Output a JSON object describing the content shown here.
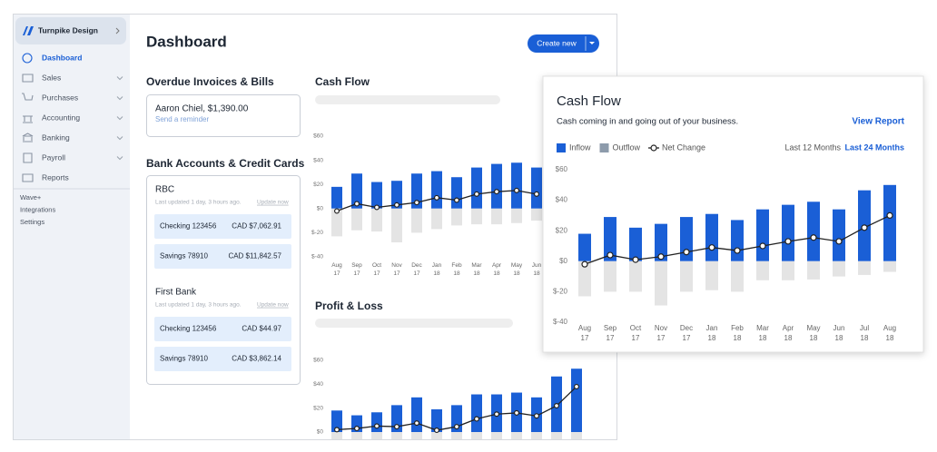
{
  "sidebar": {
    "company": "Turnpike Design",
    "nav": [
      "Dashboard",
      "Sales",
      "Purchases",
      "Accounting",
      "Banking",
      "Payroll",
      "Reports"
    ],
    "links": [
      "Wave+",
      "Integrations",
      "Settings"
    ]
  },
  "header": {
    "title": "Dashboard",
    "button": "Create new"
  },
  "overdue": {
    "title": "Overdue Invoices & Bills",
    "item": "Aaron Chiel, $1,390.00",
    "action": "Send a reminder"
  },
  "bank_accounts": {
    "title": "Bank Accounts & Credit Cards",
    "banks": [
      {
        "name": "RBC",
        "updated": "Last updated 1 day, 3 hours ago.",
        "action": "Update now",
        "accounts": [
          {
            "name": "Checking 123456",
            "balance": "CAD $7,062.91"
          },
          {
            "name": "Savings 78910",
            "balance": "CAD $11,842.57"
          }
        ]
      },
      {
        "name": "First Bank",
        "updated": "Last updated 1 day, 3 hours ago.",
        "action": "Update now",
        "accounts": [
          {
            "name": "Checking 123456",
            "balance": "CAD $44.97"
          },
          {
            "name": "Savings 78910",
            "balance": "CAD $3,862.14"
          }
        ]
      }
    ]
  },
  "popup": {
    "link": "View Report",
    "ranges": [
      "Last 12 Months",
      "Last 24 Months"
    ]
  },
  "chart_data": [
    {
      "type": "bar",
      "title": "Cash Flow",
      "categories": [
        "Aug 17",
        "Sep 17",
        "Oct 17",
        "Nov 17",
        "Dec 17",
        "Jan 18",
        "Feb 18",
        "Mar 18",
        "Apr 18",
        "May 18",
        "Jun 18"
      ],
      "series": [
        {
          "color": "#1a5fd6",
          "values": [
            18,
            29,
            22,
            23,
            29,
            31,
            26,
            34,
            37,
            38,
            34
          ]
        },
        {
          "color": "#e4e4e4",
          "values": [
            -23,
            -18,
            -19,
            -28,
            -20,
            -17,
            -14,
            -13,
            -13,
            -12,
            -10
          ]
        },
        {
          "type": "line",
          "color": "#222222",
          "values": [
            -2,
            4,
            1,
            3,
            5,
            9,
            7,
            12,
            14,
            15,
            12
          ]
        }
      ],
      "ylim": [
        -40,
        60
      ],
      "yticks": [
        {
          "value": -40,
          "label": "$-40"
        },
        {
          "value": -20,
          "label": "$-20"
        },
        {
          "value": 0,
          "label": "$0"
        },
        {
          "value": 20,
          "label": "$20"
        },
        {
          "value": 40,
          "label": "$40"
        },
        {
          "value": 60,
          "label": "$60"
        }
      ],
      "grid": false
    },
    {
      "type": "bar",
      "title": "Profit & Loss",
      "series": [
        {
          "color": "#1a5fd6",
          "values": [
            18,
            14,
            16.5,
            22.5,
            29,
            19,
            22.5,
            31.5,
            31.5,
            33,
            29,
            46.5,
            53
          ]
        },
        {
          "color": "#e4e4e4",
          "values": [
            -10,
            -10,
            -10,
            -10,
            -10,
            -10,
            -10,
            -10,
            -10,
            -10,
            -10,
            -10,
            -10
          ]
        },
        {
          "type": "line",
          "color": "#222222",
          "values": [
            2,
            3,
            5,
            4.5,
            7.5,
            1.5,
            4.5,
            11,
            15,
            16,
            13.5,
            22,
            38
          ]
        }
      ],
      "ylim": [
        0,
        60
      ],
      "yticks": [
        {
          "value": 0,
          "label": "$0"
        },
        {
          "value": 20,
          "label": "$20"
        },
        {
          "value": 40,
          "label": "$40"
        },
        {
          "value": 60,
          "label": "$60"
        }
      ],
      "grid": false
    },
    {
      "type": "bar",
      "title": "Cash Flow",
      "subtitle": "Cash coming in and going out of your business.",
      "categories": [
        "Aug 17",
        "Sep 17",
        "Oct 17",
        "Nov 17",
        "Dec 17",
        "Jan 18",
        "Feb 18",
        "Mar 18",
        "Apr 18",
        "May 18",
        "Jun 18",
        "Jul 18",
        "Aug 18"
      ],
      "series": [
        {
          "name": "Inflow",
          "color": "#1a5fd6",
          "values": [
            18,
            29,
            22,
            24.5,
            29,
            31,
            27,
            34,
            37,
            39,
            34,
            46.5,
            50
          ]
        },
        {
          "name": "Outflow",
          "color": "#e4e4e4",
          "legend_color": "#8d9bab",
          "values": [
            -23,
            -20,
            -20,
            -29,
            -20,
            -19,
            -20,
            -12.5,
            -12.5,
            -12,
            -10,
            -9,
            -7
          ]
        },
        {
          "name": "Net Change",
          "type": "line",
          "color": "#222222",
          "values": [
            -2,
            4,
            1,
            3,
            6,
            9,
            7,
            10,
            13,
            15.5,
            13,
            22,
            30
          ]
        }
      ],
      "ylim": [
        -40,
        60
      ],
      "yticks": [
        {
          "value": -40,
          "label": "$-40"
        },
        {
          "value": -20,
          "label": "$-20"
        },
        {
          "value": 0,
          "label": "$0"
        },
        {
          "value": 20,
          "label": "$20"
        },
        {
          "value": 40,
          "label": "$40"
        },
        {
          "value": 60,
          "label": "$60"
        }
      ],
      "grid": false
    }
  ]
}
